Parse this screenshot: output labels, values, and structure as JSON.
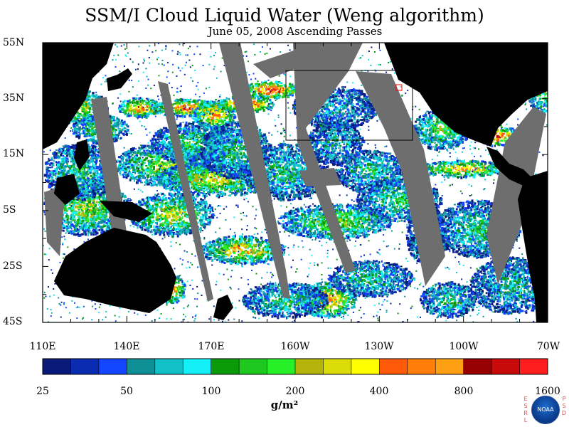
{
  "title": "SSM/I Cloud Liquid Water (Weng algorithm)",
  "subtitle": "June 05, 2008  Ascending Passes",
  "latitude_labels": [
    "55N",
    "35N",
    "15N",
    "5S",
    "25S",
    "45S"
  ],
  "longitude_labels": [
    "110E",
    "140E",
    "170E",
    "160W",
    "130W",
    "100W",
    "70W"
  ],
  "colorbar": {
    "tick_labels": [
      "25",
      "50",
      "100",
      "200",
      "400",
      "800",
      "1600"
    ],
    "colors": [
      "#0a1a7a",
      "#0a2cb0",
      "#1446ff",
      "#0f8f96",
      "#14c0c8",
      "#14f0f8",
      "#0a9a0a",
      "#1ec81e",
      "#28f028",
      "#b4b40a",
      "#dcdc0a",
      "#ffff00",
      "#ff5a0a",
      "#ff7d0a",
      "#ffa014",
      "#960000",
      "#c80a0a",
      "#ff1e1e"
    ],
    "unit": "g/m²"
  },
  "colors": {
    "land": "#000000",
    "missing_swath": "#6e6e6e",
    "clear_ocean": "#ffffff"
  },
  "logo": {
    "left_letters": "ESRL",
    "right_letters": "PSD",
    "emblem_text": "NOAA"
  },
  "map_extent": {
    "lon": [
      "110E",
      "70W"
    ],
    "lat": [
      "45S",
      "55N"
    ]
  }
}
